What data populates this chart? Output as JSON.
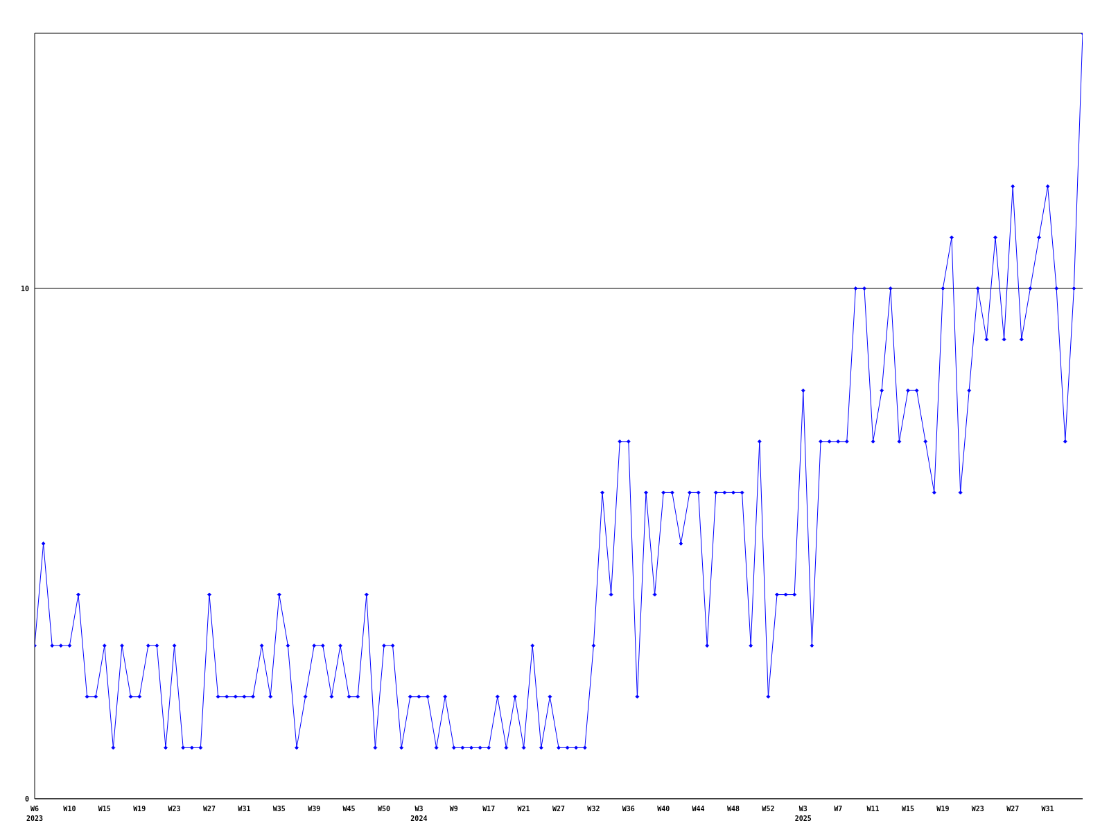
{
  "chart_data": {
    "type": "line",
    "categories": [
      "W6\n2023",
      null,
      null,
      null,
      "W10",
      null,
      null,
      null,
      "W15",
      null,
      null,
      null,
      "W19",
      null,
      null,
      null,
      "W23",
      null,
      null,
      null,
      "W27",
      null,
      null,
      null,
      "W31",
      null,
      null,
      null,
      "W35",
      null,
      null,
      null,
      "W39",
      null,
      null,
      null,
      "W45",
      null,
      null,
      null,
      "W50",
      null,
      null,
      null,
      "W3\n2024",
      null,
      null,
      null,
      "W9",
      null,
      null,
      null,
      "W17",
      null,
      null,
      null,
      "W21",
      null,
      null,
      null,
      "W27",
      null,
      null,
      null,
      "W32",
      null,
      null,
      null,
      "W36",
      null,
      null,
      null,
      "W40",
      null,
      null,
      null,
      "W44",
      null,
      null,
      null,
      "W48",
      null,
      null,
      null,
      "W52",
      null,
      null,
      null,
      "W3\n2025",
      null,
      null,
      null,
      "W7",
      null,
      null,
      null,
      "W11",
      null,
      null,
      null,
      "W15",
      null,
      null,
      null,
      "W19",
      null,
      null,
      null,
      "W23",
      null,
      null,
      null,
      "W27",
      null,
      null,
      null,
      "W31",
      null,
      null,
      null,
      null
    ],
    "series": [
      {
        "color": "#0000ff",
        "values": [
          3,
          5,
          3,
          3,
          3,
          4,
          2,
          2,
          3,
          1,
          3,
          2,
          2,
          3,
          3,
          1,
          3,
          1,
          1,
          1,
          4,
          2,
          2,
          2,
          2,
          2,
          3,
          2,
          4,
          3,
          1,
          2,
          3,
          3,
          2,
          3,
          2,
          2,
          4,
          1,
          3,
          3,
          1,
          2,
          2,
          2,
          1,
          2,
          1,
          1,
          1,
          1,
          1,
          2,
          1,
          2,
          1,
          3,
          1,
          2,
          1,
          1,
          1,
          1,
          3,
          6,
          4,
          7,
          7,
          2,
          6,
          4,
          6,
          6,
          5,
          6,
          6,
          3,
          6,
          6,
          6,
          6,
          3,
          7,
          2,
          4,
          4,
          4,
          8,
          3,
          7,
          7,
          7,
          7,
          10,
          10,
          7,
          8,
          10,
          7,
          8,
          8,
          7,
          6,
          10,
          11,
          6,
          8,
          10,
          9,
          11,
          9,
          12,
          9,
          10,
          11,
          12,
          10,
          7,
          10,
          15
        ]
      }
    ],
    "ylim": [
      0,
      15
    ],
    "yticks": [
      0,
      10
    ],
    "grid": "y",
    "marker": "diamond",
    "line_style": "solid"
  }
}
